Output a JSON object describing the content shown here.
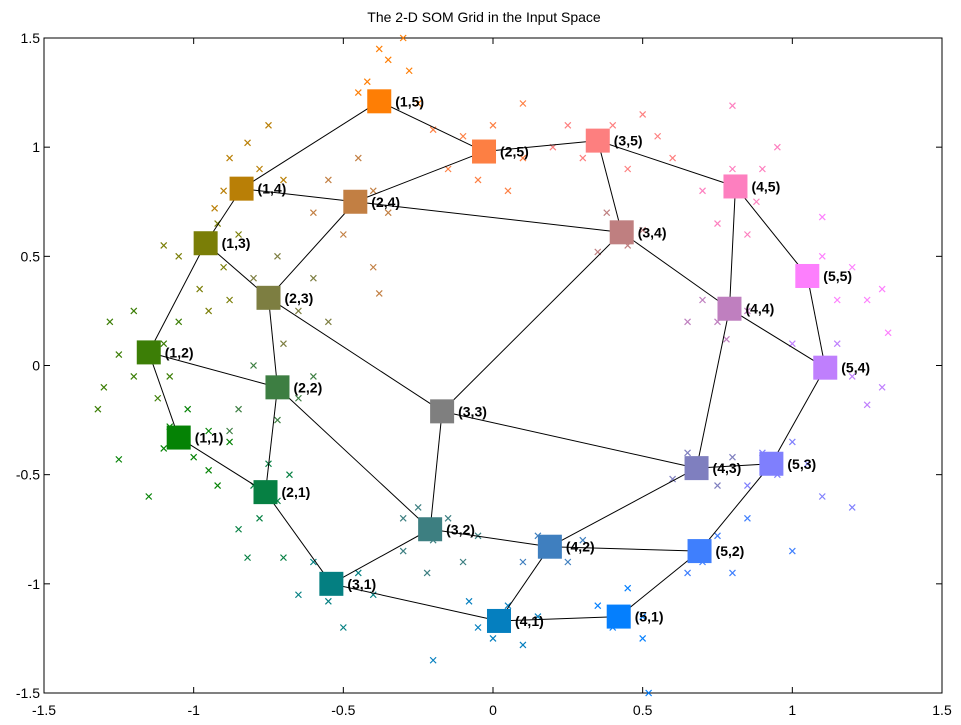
{
  "chart_data": {
    "type": "scatter",
    "title": "The 2-D SOM Grid in the Input Space",
    "xlabel": "",
    "ylabel": "",
    "xlim": [
      -1.5,
      1.5
    ],
    "ylim": [
      -1.5,
      1.5
    ],
    "xticks": [
      "-1.5",
      "-1",
      "-0.5",
      "0",
      "0.5",
      "1",
      "1.5"
    ],
    "yticks": [
      "1.5",
      "1",
      "0.5",
      "0",
      "-0.5",
      "-1",
      "-1.5"
    ],
    "xtick_values": [
      -1.5,
      -1,
      -0.5,
      0,
      0.5,
      1,
      1.5
    ],
    "ytick_values": [
      1.5,
      1,
      0.5,
      0,
      -0.5,
      -1,
      -1.5
    ],
    "grid": false,
    "nodes": [
      {
        "label": "(1,1)",
        "x": -1.05,
        "y": -0.33,
        "color": "#058205"
      },
      {
        "label": "(1,2)",
        "x": -1.15,
        "y": 0.06,
        "color": "#3c7e06"
      },
      {
        "label": "(1,3)",
        "x": -0.96,
        "y": 0.56,
        "color": "#7a7e07"
      },
      {
        "label": "(1,4)",
        "x": -0.84,
        "y": 0.81,
        "color": "#b97f06"
      },
      {
        "label": "(1,5)",
        "x": -0.38,
        "y": 1.21,
        "color": "#fe7e05"
      },
      {
        "label": "(2,1)",
        "x": -0.76,
        "y": -0.58,
        "color": "#068043"
      },
      {
        "label": "(2,2)",
        "x": -0.72,
        "y": -0.1,
        "color": "#3d7e42"
      },
      {
        "label": "(2,3)",
        "x": -0.75,
        "y": 0.31,
        "color": "#7d7e41"
      },
      {
        "label": "(2,4)",
        "x": -0.46,
        "y": 0.75,
        "color": "#c27f43"
      },
      {
        "label": "(2,5)",
        "x": -0.03,
        "y": 0.98,
        "color": "#fd7f43"
      },
      {
        "label": "(3,1)",
        "x": -0.54,
        "y": -1.0,
        "color": "#047f81"
      },
      {
        "label": "(3,2)",
        "x": -0.21,
        "y": -0.75,
        "color": "#3d7f81"
      },
      {
        "label": "(3,3)",
        "x": -0.17,
        "y": -0.21,
        "color": "#7f7f7f"
      },
      {
        "label": "(3,4)",
        "x": 0.43,
        "y": 0.61,
        "color": "#bf7f80"
      },
      {
        "label": "(3,5)",
        "x": 0.35,
        "y": 1.03,
        "color": "#fd7f7f"
      },
      {
        "label": "(4,1)",
        "x": 0.02,
        "y": -1.17,
        "color": "#057fbf"
      },
      {
        "label": "(4,2)",
        "x": 0.19,
        "y": -0.83,
        "color": "#3f7fbf"
      },
      {
        "label": "(4,3)",
        "x": 0.68,
        "y": -0.47,
        "color": "#7f7fbf"
      },
      {
        "label": "(4,4)",
        "x": 0.79,
        "y": 0.26,
        "color": "#bf7fbf"
      },
      {
        "label": "(4,5)",
        "x": 0.81,
        "y": 0.82,
        "color": "#fd7fbf"
      },
      {
        "label": "(5,1)",
        "x": 0.42,
        "y": -1.15,
        "color": "#057ffd"
      },
      {
        "label": "(5,2)",
        "x": 0.69,
        "y": -0.85,
        "color": "#3f7ffd"
      },
      {
        "label": "(5,3)",
        "x": 0.93,
        "y": -0.45,
        "color": "#7f7ffd"
      },
      {
        "label": "(5,4)",
        "x": 1.11,
        "y": -0.01,
        "color": "#bf7ffd"
      },
      {
        "label": "(5,5)",
        "x": 1.05,
        "y": 0.41,
        "color": "#fd7ffd"
      }
    ],
    "edges": [
      [
        "(1,1)",
        "(1,2)"
      ],
      [
        "(1,2)",
        "(1,3)"
      ],
      [
        "(1,3)",
        "(1,4)"
      ],
      [
        "(1,4)",
        "(1,5)"
      ],
      [
        "(2,1)",
        "(2,2)"
      ],
      [
        "(2,2)",
        "(2,3)"
      ],
      [
        "(2,3)",
        "(2,4)"
      ],
      [
        "(2,4)",
        "(2,5)"
      ],
      [
        "(3,1)",
        "(3,2)"
      ],
      [
        "(3,2)",
        "(3,3)"
      ],
      [
        "(3,3)",
        "(3,4)"
      ],
      [
        "(3,4)",
        "(3,5)"
      ],
      [
        "(4,1)",
        "(4,2)"
      ],
      [
        "(4,2)",
        "(4,3)"
      ],
      [
        "(4,3)",
        "(4,4)"
      ],
      [
        "(4,4)",
        "(4,5)"
      ],
      [
        "(5,1)",
        "(5,2)"
      ],
      [
        "(5,2)",
        "(5,3)"
      ],
      [
        "(5,3)",
        "(5,4)"
      ],
      [
        "(5,4)",
        "(5,5)"
      ],
      [
        "(1,1)",
        "(2,1)"
      ],
      [
        "(2,1)",
        "(3,1)"
      ],
      [
        "(3,1)",
        "(4,1)"
      ],
      [
        "(4,1)",
        "(5,1)"
      ],
      [
        "(1,2)",
        "(2,2)"
      ],
      [
        "(2,2)",
        "(3,2)"
      ],
      [
        "(3,2)",
        "(4,2)"
      ],
      [
        "(4,2)",
        "(5,2)"
      ],
      [
        "(1,3)",
        "(2,3)"
      ],
      [
        "(2,3)",
        "(3,3)"
      ],
      [
        "(3,3)",
        "(4,3)"
      ],
      [
        "(4,3)",
        "(5,3)"
      ],
      [
        "(1,4)",
        "(2,4)"
      ],
      [
        "(2,4)",
        "(3,4)"
      ],
      [
        "(3,4)",
        "(4,4)"
      ],
      [
        "(4,4)",
        "(5,4)"
      ],
      [
        "(1,5)",
        "(2,5)"
      ],
      [
        "(2,5)",
        "(3,5)"
      ],
      [
        "(3,5)",
        "(4,5)"
      ],
      [
        "(4,5)",
        "(5,5)"
      ]
    ],
    "samples": [
      {
        "x": -1.1,
        "y": -0.38,
        "color": "#058205"
      },
      {
        "x": -1.25,
        "y": -0.43,
        "color": "#058205"
      },
      {
        "x": -1.15,
        "y": -0.6,
        "color": "#058205"
      },
      {
        "x": -0.95,
        "y": -0.48,
        "color": "#058205"
      },
      {
        "x": -0.92,
        "y": -0.55,
        "color": "#058205"
      },
      {
        "x": -0.88,
        "y": -0.35,
        "color": "#058205"
      },
      {
        "x": -1.02,
        "y": -0.2,
        "color": "#058205"
      },
      {
        "x": -0.95,
        "y": -0.3,
        "color": "#058205"
      },
      {
        "x": -1.0,
        "y": -0.42,
        "color": "#058205"
      },
      {
        "x": -1.08,
        "y": -0.28,
        "color": "#058205"
      },
      {
        "x": -1.3,
        "y": -0.1,
        "color": "#3c7e06"
      },
      {
        "x": -1.25,
        "y": 0.05,
        "color": "#3c7e06"
      },
      {
        "x": -1.2,
        "y": -0.05,
        "color": "#3c7e06"
      },
      {
        "x": -1.1,
        "y": 0.1,
        "color": "#3c7e06"
      },
      {
        "x": -1.28,
        "y": 0.2,
        "color": "#3c7e06"
      },
      {
        "x": -1.12,
        "y": -0.15,
        "color": "#3c7e06"
      },
      {
        "x": -1.32,
        "y": -0.2,
        "color": "#3c7e06"
      },
      {
        "x": -1.05,
        "y": 0.2,
        "color": "#3c7e06"
      },
      {
        "x": -1.2,
        "y": 0.25,
        "color": "#3c7e06"
      },
      {
        "x": -1.08,
        "y": -0.05,
        "color": "#3c7e06"
      },
      {
        "x": -0.98,
        "y": 0.35,
        "color": "#7a7e07"
      },
      {
        "x": -1.05,
        "y": 0.5,
        "color": "#7a7e07"
      },
      {
        "x": -0.9,
        "y": 0.45,
        "color": "#7a7e07"
      },
      {
        "x": -0.85,
        "y": 0.6,
        "color": "#7a7e07"
      },
      {
        "x": -0.95,
        "y": 0.25,
        "color": "#7a7e07"
      },
      {
        "x": -0.88,
        "y": 0.3,
        "color": "#7a7e07"
      },
      {
        "x": -1.1,
        "y": 0.55,
        "color": "#7a7e07"
      },
      {
        "x": -0.92,
        "y": 0.65,
        "color": "#7a7e07"
      },
      {
        "x": -0.9,
        "y": 0.8,
        "color": "#b97f06"
      },
      {
        "x": -0.78,
        "y": 0.9,
        "color": "#b97f06"
      },
      {
        "x": -0.7,
        "y": 0.85,
        "color": "#b97f06"
      },
      {
        "x": -0.88,
        "y": 0.95,
        "color": "#b97f06"
      },
      {
        "x": -0.82,
        "y": 1.02,
        "color": "#b97f06"
      },
      {
        "x": -0.75,
        "y": 1.1,
        "color": "#b97f06"
      },
      {
        "x": -0.93,
        "y": 0.72,
        "color": "#b97f06"
      },
      {
        "x": -0.42,
        "y": 1.3,
        "color": "#fe7e05"
      },
      {
        "x": -0.35,
        "y": 1.4,
        "color": "#fe7e05"
      },
      {
        "x": -0.28,
        "y": 1.35,
        "color": "#fe7e05"
      },
      {
        "x": -0.45,
        "y": 1.25,
        "color": "#fe7e05"
      },
      {
        "x": -0.38,
        "y": 1.45,
        "color": "#fe7e05"
      },
      {
        "x": -0.3,
        "y": 1.5,
        "color": "#fe7e05"
      },
      {
        "x": -0.25,
        "y": 1.2,
        "color": "#fe7e05"
      },
      {
        "x": -0.8,
        "y": -0.55,
        "color": "#068043"
      },
      {
        "x": -0.78,
        "y": -0.7,
        "color": "#068043"
      },
      {
        "x": -0.72,
        "y": -0.62,
        "color": "#068043"
      },
      {
        "x": -0.85,
        "y": -0.75,
        "color": "#068043"
      },
      {
        "x": -0.68,
        "y": -0.5,
        "color": "#068043"
      },
      {
        "x": -0.82,
        "y": -0.88,
        "color": "#068043"
      },
      {
        "x": -0.7,
        "y": -0.88,
        "color": "#068043"
      },
      {
        "x": -0.75,
        "y": -0.45,
        "color": "#068043"
      },
      {
        "x": -0.85,
        "y": -0.2,
        "color": "#3d7e42"
      },
      {
        "x": -0.72,
        "y": -0.25,
        "color": "#3d7e42"
      },
      {
        "x": -0.65,
        "y": -0.15,
        "color": "#3d7e42"
      },
      {
        "x": -0.8,
        "y": 0.0,
        "color": "#3d7e42"
      },
      {
        "x": -0.6,
        "y": -0.05,
        "color": "#3d7e42"
      },
      {
        "x": -0.88,
        "y": -0.3,
        "color": "#3d7e42"
      },
      {
        "x": -0.7,
        "y": 0.1,
        "color": "#7d7e41"
      },
      {
        "x": -0.65,
        "y": 0.25,
        "color": "#7d7e41"
      },
      {
        "x": -0.6,
        "y": 0.4,
        "color": "#7d7e41"
      },
      {
        "x": -0.8,
        "y": 0.4,
        "color": "#7d7e41"
      },
      {
        "x": -0.72,
        "y": 0.5,
        "color": "#7d7e41"
      },
      {
        "x": -0.55,
        "y": 0.2,
        "color": "#7d7e41"
      },
      {
        "x": -0.5,
        "y": 0.6,
        "color": "#c27f43"
      },
      {
        "x": -0.4,
        "y": 0.8,
        "color": "#c27f43"
      },
      {
        "x": -0.55,
        "y": 0.85,
        "color": "#c27f43"
      },
      {
        "x": -0.45,
        "y": 0.95,
        "color": "#c27f43"
      },
      {
        "x": -0.35,
        "y": 0.7,
        "color": "#c27f43"
      },
      {
        "x": -0.6,
        "y": 0.7,
        "color": "#c27f43"
      },
      {
        "x": -0.4,
        "y": 0.45,
        "color": "#c27f43"
      },
      {
        "x": -0.38,
        "y": 0.33,
        "color": "#c27f43"
      },
      {
        "x": -0.1,
        "y": 1.05,
        "color": "#fd7f43"
      },
      {
        "x": 0.0,
        "y": 1.1,
        "color": "#fd7f43"
      },
      {
        "x": -0.05,
        "y": 0.85,
        "color": "#fd7f43"
      },
      {
        "x": 0.1,
        "y": 0.95,
        "color": "#fd7f43"
      },
      {
        "x": -0.15,
        "y": 0.9,
        "color": "#fd7f43"
      },
      {
        "x": 0.05,
        "y": 0.8,
        "color": "#fd7f43"
      },
      {
        "x": 0.1,
        "y": 1.2,
        "color": "#fd7f43"
      },
      {
        "x": -0.2,
        "y": 1.08,
        "color": "#fd7f43"
      },
      {
        "x": -0.55,
        "y": -1.08,
        "color": "#047f81"
      },
      {
        "x": -0.45,
        "y": -0.95,
        "color": "#047f81"
      },
      {
        "x": -0.6,
        "y": -0.9,
        "color": "#047f81"
      },
      {
        "x": -0.5,
        "y": -1.2,
        "color": "#047f81"
      },
      {
        "x": -0.4,
        "y": -1.05,
        "color": "#047f81"
      },
      {
        "x": -0.65,
        "y": -1.05,
        "color": "#047f81"
      },
      {
        "x": -0.2,
        "y": -0.8,
        "color": "#3d7f81"
      },
      {
        "x": -0.25,
        "y": -0.65,
        "color": "#3d7f81"
      },
      {
        "x": -0.15,
        "y": -0.7,
        "color": "#3d7f81"
      },
      {
        "x": -0.3,
        "y": -0.85,
        "color": "#3d7f81"
      },
      {
        "x": -0.1,
        "y": -0.9,
        "color": "#3d7f81"
      },
      {
        "x": -0.22,
        "y": -0.95,
        "color": "#3d7f81"
      },
      {
        "x": -0.3,
        "y": -0.7,
        "color": "#3d7f81"
      },
      {
        "x": -0.05,
        "y": -0.78,
        "color": "#3d7f81"
      },
      {
        "x": 0.45,
        "y": 0.55,
        "color": "#bf7f80"
      },
      {
        "x": 0.38,
        "y": 0.7,
        "color": "#bf7f80"
      },
      {
        "x": 0.5,
        "y": 0.62,
        "color": "#bf7f80"
      },
      {
        "x": 0.35,
        "y": 0.52,
        "color": "#bf7f80"
      },
      {
        "x": 0.3,
        "y": 0.95,
        "color": "#fd7f7f"
      },
      {
        "x": 0.4,
        "y": 1.1,
        "color": "#fd7f7f"
      },
      {
        "x": 0.25,
        "y": 1.1,
        "color": "#fd7f7f"
      },
      {
        "x": 0.45,
        "y": 0.9,
        "color": "#fd7f7f"
      },
      {
        "x": 0.55,
        "y": 1.05,
        "color": "#fd7f7f"
      },
      {
        "x": 0.2,
        "y": 1.0,
        "color": "#fd7f7f"
      },
      {
        "x": 0.5,
        "y": 1.15,
        "color": "#fd7f7f"
      },
      {
        "x": 0.6,
        "y": 0.95,
        "color": "#fd7f7f"
      },
      {
        "x": 0.0,
        "y": -1.25,
        "color": "#057fbf"
      },
      {
        "x": 0.05,
        "y": -1.1,
        "color": "#057fbf"
      },
      {
        "x": -0.05,
        "y": -1.2,
        "color": "#057fbf"
      },
      {
        "x": 0.1,
        "y": -1.28,
        "color": "#057fbf"
      },
      {
        "x": -0.08,
        "y": -1.08,
        "color": "#057fbf"
      },
      {
        "x": 0.15,
        "y": -1.15,
        "color": "#057fbf"
      },
      {
        "x": -0.2,
        "y": -1.35,
        "color": "#057fbf"
      },
      {
        "x": 0.2,
        "y": -0.85,
        "color": "#3f7fbf"
      },
      {
        "x": 0.15,
        "y": -0.78,
        "color": "#3f7fbf"
      },
      {
        "x": 0.25,
        "y": -0.9,
        "color": "#3f7fbf"
      },
      {
        "x": 0.3,
        "y": -0.8,
        "color": "#3f7fbf"
      },
      {
        "x": 0.1,
        "y": -0.9,
        "color": "#3f7fbf"
      },
      {
        "x": 0.7,
        "y": -0.5,
        "color": "#7f7fbf"
      },
      {
        "x": 0.65,
        "y": -0.4,
        "color": "#7f7fbf"
      },
      {
        "x": 0.75,
        "y": -0.55,
        "color": "#7f7fbf"
      },
      {
        "x": 0.6,
        "y": -0.52,
        "color": "#7f7fbf"
      },
      {
        "x": 0.8,
        "y": -0.42,
        "color": "#7f7fbf"
      },
      {
        "x": 0.75,
        "y": 0.2,
        "color": "#bf7fbf"
      },
      {
        "x": 0.7,
        "y": 0.3,
        "color": "#bf7fbf"
      },
      {
        "x": 0.85,
        "y": 0.25,
        "color": "#bf7fbf"
      },
      {
        "x": 0.65,
        "y": 0.2,
        "color": "#bf7fbf"
      },
      {
        "x": 0.78,
        "y": 0.12,
        "color": "#bf7fbf"
      },
      {
        "x": 0.8,
        "y": 0.9,
        "color": "#fd7fbf"
      },
      {
        "x": 0.7,
        "y": 0.8,
        "color": "#fd7fbf"
      },
      {
        "x": 0.88,
        "y": 0.75,
        "color": "#fd7fbf"
      },
      {
        "x": 0.9,
        "y": 0.9,
        "color": "#fd7fbf"
      },
      {
        "x": 0.8,
        "y": 1.19,
        "color": "#fd7fbf"
      },
      {
        "x": 0.95,
        "y": 1.0,
        "color": "#fd7fbf"
      },
      {
        "x": 0.75,
        "y": 0.65,
        "color": "#fd7fbf"
      },
      {
        "x": 0.85,
        "y": 0.6,
        "color": "#fd7fbf"
      },
      {
        "x": 0.4,
        "y": -1.2,
        "color": "#057ffd"
      },
      {
        "x": 0.5,
        "y": -1.15,
        "color": "#057ffd"
      },
      {
        "x": 0.35,
        "y": -1.1,
        "color": "#057ffd"
      },
      {
        "x": 0.5,
        "y": -1.25,
        "color": "#057ffd"
      },
      {
        "x": 0.52,
        "y": -1.5,
        "color": "#057ffd"
      },
      {
        "x": 0.45,
        "y": -1.02,
        "color": "#057ffd"
      },
      {
        "x": 0.7,
        "y": -0.9,
        "color": "#3f7ffd"
      },
      {
        "x": 0.75,
        "y": -0.78,
        "color": "#3f7ffd"
      },
      {
        "x": 0.8,
        "y": -0.95,
        "color": "#3f7ffd"
      },
      {
        "x": 0.65,
        "y": -0.95,
        "color": "#3f7ffd"
      },
      {
        "x": 0.85,
        "y": -0.7,
        "color": "#3f7ffd"
      },
      {
        "x": 1.0,
        "y": -0.85,
        "color": "#3f7ffd"
      },
      {
        "x": 0.9,
        "y": -0.4,
        "color": "#7f7ffd"
      },
      {
        "x": 0.95,
        "y": -0.5,
        "color": "#7f7ffd"
      },
      {
        "x": 1.0,
        "y": -0.35,
        "color": "#7f7ffd"
      },
      {
        "x": 0.85,
        "y": -0.55,
        "color": "#7f7ffd"
      },
      {
        "x": 1.05,
        "y": -0.45,
        "color": "#7f7ffd"
      },
      {
        "x": 1.1,
        "y": -0.6,
        "color": "#7f7ffd"
      },
      {
        "x": 1.2,
        "y": -0.65,
        "color": "#7f7ffd"
      },
      {
        "x": 1.1,
        "y": 0.0,
        "color": "#bf7ffd"
      },
      {
        "x": 1.15,
        "y": 0.1,
        "color": "#bf7ffd"
      },
      {
        "x": 1.2,
        "y": -0.05,
        "color": "#bf7ffd"
      },
      {
        "x": 1.25,
        "y": -0.18,
        "color": "#bf7ffd"
      },
      {
        "x": 1.3,
        "y": -0.1,
        "color": "#bf7ffd"
      },
      {
        "x": 1.0,
        "y": 0.1,
        "color": "#bf7ffd"
      },
      {
        "x": 1.05,
        "y": 0.4,
        "color": "#fd7ffd"
      },
      {
        "x": 1.1,
        "y": 0.5,
        "color": "#fd7ffd"
      },
      {
        "x": 1.15,
        "y": 0.3,
        "color": "#fd7ffd"
      },
      {
        "x": 1.2,
        "y": 0.45,
        "color": "#fd7ffd"
      },
      {
        "x": 1.25,
        "y": 0.3,
        "color": "#fd7ffd"
      },
      {
        "x": 1.3,
        "y": 0.35,
        "color": "#fd7ffd"
      },
      {
        "x": 1.1,
        "y": 0.68,
        "color": "#fd7ffd"
      },
      {
        "x": 1.32,
        "y": 0.15,
        "color": "#fd7ffd"
      }
    ]
  }
}
